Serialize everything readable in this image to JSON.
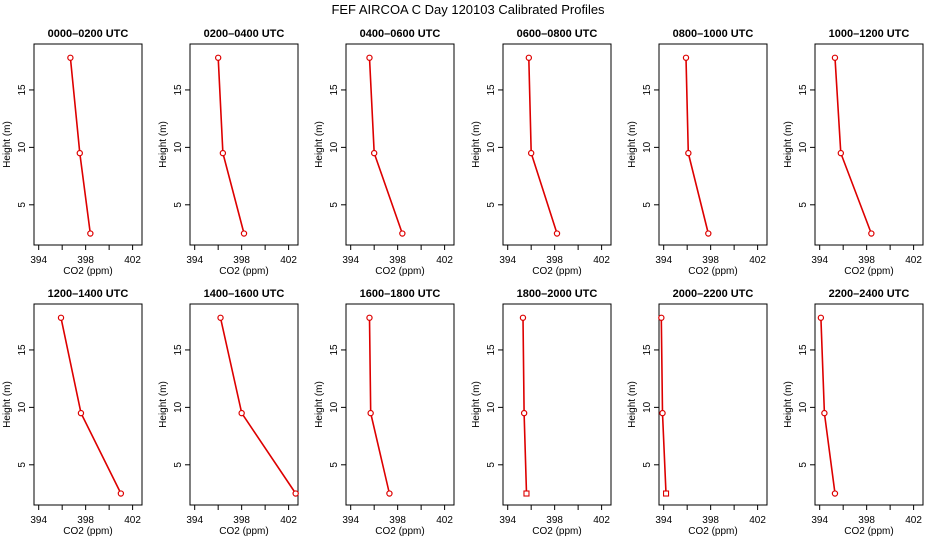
{
  "figure": {
    "title": "FEF AIRCOA C  Day 120103  Calibrated Profiles",
    "line_color": "#dd0000",
    "marker_color": "#dd0000"
  },
  "chart_data": [
    {
      "type": "line",
      "title": "0000–0200 UTC",
      "xlabel": "CO2 (ppm)",
      "ylabel": "Height (m)",
      "xlim": [
        393.6,
        402.8
      ],
      "ylim": [
        1.5,
        19
      ],
      "xticks": [
        "394",
        "398",
        "402"
      ],
      "yticks": [
        "5",
        "10",
        "15"
      ],
      "series": [
        {
          "x": [
            396.7,
            397.5,
            398.4
          ],
          "y": [
            17.8,
            9.5,
            2.5
          ]
        }
      ]
    },
    {
      "type": "line",
      "title": "0200–0400 UTC",
      "xlabel": "CO2 (ppm)",
      "ylabel": "Height (m)",
      "xlim": [
        393.6,
        402.8
      ],
      "ylim": [
        1.5,
        19
      ],
      "xticks": [
        "394",
        "398",
        "402"
      ],
      "yticks": [
        "5",
        "10",
        "15"
      ],
      "series": [
        {
          "x": [
            396.0,
            396.4,
            398.2
          ],
          "y": [
            17.8,
            9.5,
            2.5
          ]
        }
      ]
    },
    {
      "type": "line",
      "title": "0400–0600 UTC",
      "xlabel": "CO2 (ppm)",
      "ylabel": "Height (m)",
      "xlim": [
        393.6,
        402.8
      ],
      "ylim": [
        1.5,
        19
      ],
      "xticks": [
        "394",
        "398",
        "402"
      ],
      "yticks": [
        "5",
        "10",
        "15"
      ],
      "series": [
        {
          "x": [
            395.6,
            396.0,
            398.4
          ],
          "y": [
            17.8,
            9.5,
            2.5
          ]
        }
      ]
    },
    {
      "type": "line",
      "title": "0600–0800 UTC",
      "xlabel": "CO2 (ppm)",
      "ylabel": "Height (m)",
      "xlim": [
        393.6,
        402.8
      ],
      "ylim": [
        1.5,
        19
      ],
      "xticks": [
        "394",
        "398",
        "402"
      ],
      "yticks": [
        "5",
        "10",
        "15"
      ],
      "series": [
        {
          "x": [
            395.8,
            396.0,
            398.2
          ],
          "y": [
            17.8,
            9.5,
            2.5
          ]
        }
      ]
    },
    {
      "type": "line",
      "title": "0800–1000 UTC",
      "xlabel": "CO2 (ppm)",
      "ylabel": "Height (m)",
      "xlim": [
        393.6,
        402.8
      ],
      "ylim": [
        1.5,
        19
      ],
      "xticks": [
        "394",
        "398",
        "402"
      ],
      "yticks": [
        "5",
        "10",
        "15"
      ],
      "series": [
        {
          "x": [
            395.9,
            396.1,
            397.8
          ],
          "y": [
            17.8,
            9.5,
            2.5
          ]
        }
      ]
    },
    {
      "type": "line",
      "title": "1000–1200 UTC",
      "xlabel": "CO2 (ppm)",
      "ylabel": "Height (m)",
      "xlim": [
        393.6,
        402.8
      ],
      "ylim": [
        1.5,
        19
      ],
      "xticks": [
        "394",
        "398",
        "402"
      ],
      "yticks": [
        "5",
        "10",
        "15"
      ],
      "series": [
        {
          "x": [
            395.3,
            395.8,
            398.4
          ],
          "y": [
            17.8,
            9.5,
            2.5
          ]
        }
      ]
    },
    {
      "type": "line",
      "title": "1200–1400 UTC",
      "xlabel": "CO2 (ppm)",
      "ylabel": "Height (m)",
      "xlim": [
        393.6,
        402.8
      ],
      "ylim": [
        1.5,
        19
      ],
      "xticks": [
        "394",
        "398",
        "402"
      ],
      "yticks": [
        "5",
        "10",
        "15"
      ],
      "series": [
        {
          "x": [
            395.9,
            397.6,
            401.0
          ],
          "y": [
            17.8,
            9.5,
            2.5
          ]
        }
      ]
    },
    {
      "type": "line",
      "title": "1400–1600 UTC",
      "xlabel": "CO2 (ppm)",
      "ylabel": "Height (m)",
      "xlim": [
        393.6,
        402.8
      ],
      "ylim": [
        1.5,
        19
      ],
      "xticks": [
        "394",
        "398",
        "402"
      ],
      "yticks": [
        "5",
        "10",
        "15"
      ],
      "series": [
        {
          "x": [
            396.2,
            398.0,
            402.6
          ],
          "y": [
            17.8,
            9.5,
            2.5
          ]
        }
      ]
    },
    {
      "type": "line",
      "title": "1600–1800 UTC",
      "xlabel": "CO2 (ppm)",
      "ylabel": "Height (m)",
      "xlim": [
        393.6,
        402.8
      ],
      "ylim": [
        1.5,
        19
      ],
      "xticks": [
        "394",
        "398",
        "402"
      ],
      "yticks": [
        "5",
        "10",
        "15"
      ],
      "series": [
        {
          "x": [
            395.6,
            395.7,
            397.3
          ],
          "y": [
            17.8,
            9.5,
            2.5
          ]
        }
      ]
    },
    {
      "type": "line",
      "title": "1800–2000 UTC",
      "xlabel": "CO2 (ppm)",
      "ylabel": "Height (m)",
      "xlim": [
        393.6,
        402.8
      ],
      "ylim": [
        1.5,
        19
      ],
      "xticks": [
        "394",
        "398",
        "402"
      ],
      "yticks": [
        "5",
        "10",
        "15"
      ],
      "series": [
        {
          "x": [
            395.3,
            395.4,
            395.6
          ],
          "y": [
            17.8,
            9.5,
            2.5
          ]
        }
      ]
    },
    {
      "type": "line",
      "title": "2000–2200 UTC",
      "xlabel": "CO2 (ppm)",
      "ylabel": "Height (m)",
      "xlim": [
        393.6,
        402.8
      ],
      "ylim": [
        1.5,
        19
      ],
      "xticks": [
        "394",
        "398",
        "402"
      ],
      "yticks": [
        "5",
        "10",
        "15"
      ],
      "series": [
        {
          "x": [
            393.8,
            393.9,
            394.2
          ],
          "y": [
            17.8,
            9.5,
            2.5
          ]
        }
      ]
    },
    {
      "type": "line",
      "title": "2200–2400 UTC",
      "xlabel": "CO2 (ppm)",
      "ylabel": "Height (m)",
      "xlim": [
        393.6,
        402.8
      ],
      "ylim": [
        1.5,
        19
      ],
      "xticks": [
        "394",
        "398",
        "402"
      ],
      "yticks": [
        "5",
        "10",
        "15"
      ],
      "series": [
        {
          "x": [
            394.1,
            394.4,
            395.3
          ],
          "y": [
            17.8,
            9.5,
            2.5
          ]
        }
      ]
    }
  ]
}
